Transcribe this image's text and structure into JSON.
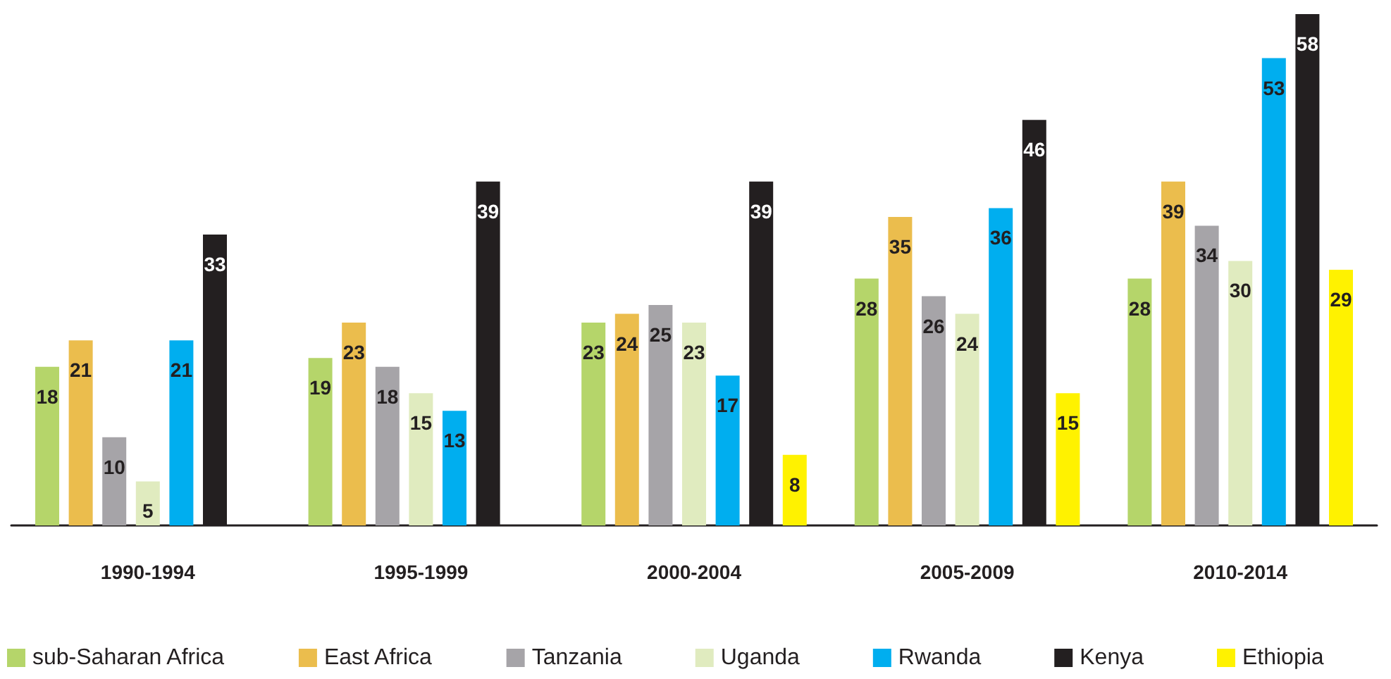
{
  "chart_data": {
    "type": "bar",
    "categories": [
      "1990-1994",
      "1995-1999",
      "2000-2004",
      "2005-2009",
      "2010-2014"
    ],
    "series": [
      {
        "name": "sub-Saharan Africa",
        "color": "#b5d56a",
        "values": [
          18,
          19,
          23,
          28,
          28
        ]
      },
      {
        "name": "East Africa",
        "color": "#ebbd4d",
        "values": [
          21,
          23,
          24,
          35,
          39
        ]
      },
      {
        "name": "Tanzania",
        "color": "#a6a4a8",
        "values": [
          10,
          18,
          25,
          26,
          34
        ]
      },
      {
        "name": "Uganda",
        "color": "#e0ebbf",
        "values": [
          5,
          15,
          23,
          24,
          30
        ]
      },
      {
        "name": "Rwanda",
        "color": "#00aeef",
        "values": [
          21,
          13,
          17,
          36,
          53
        ]
      },
      {
        "name": "Kenya",
        "color": "#231f20",
        "values": [
          33,
          39,
          39,
          46,
          58
        ]
      },
      {
        "name": "Ethiopia",
        "color": "#fff200",
        "values": [
          null,
          null,
          8,
          15,
          29
        ]
      }
    ],
    "data_labels": true,
    "legend": "bottom"
  }
}
